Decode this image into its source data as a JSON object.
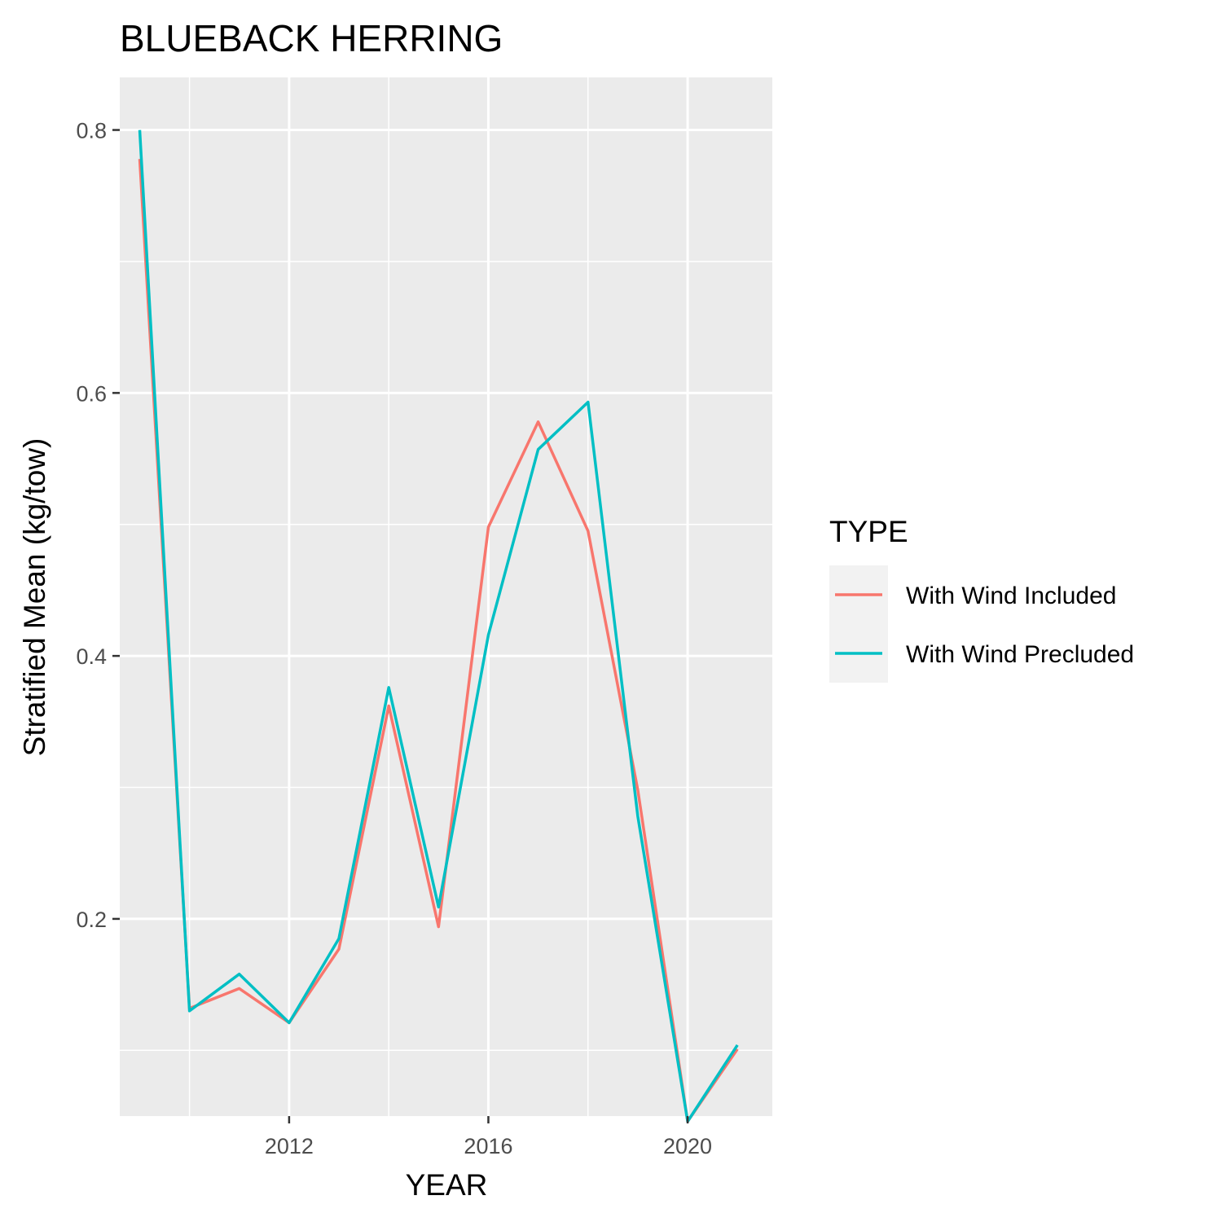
{
  "chart_data": {
    "type": "line",
    "title": "BLUEBACK HERRING",
    "xlabel": "YEAR",
    "ylabel": "Stratified Mean (kg/tow)",
    "xlim": [
      2008.6,
      2021.7
    ],
    "ylim": [
      0.05,
      0.84
    ],
    "x_ticks": [
      2012,
      2016,
      2020
    ],
    "x_minor_ticks": [
      2010,
      2014,
      2018
    ],
    "y_ticks": [
      0.2,
      0.4,
      0.6,
      0.8
    ],
    "y_minor_ticks": [
      0.1,
      0.3,
      0.5,
      0.7
    ],
    "grid": true,
    "legend": {
      "title": "TYPE",
      "position": "right"
    },
    "x": [
      2009,
      2010,
      2011,
      2012,
      2013,
      2014,
      2015,
      2016,
      2017,
      2018,
      2019,
      2020,
      2021
    ],
    "series": [
      {
        "name": "With Wind Included",
        "color": "#F8766D",
        "values": [
          0.778,
          0.132,
          0.147,
          0.121,
          0.177,
          0.362,
          0.194,
          0.498,
          0.578,
          0.495,
          0.298,
          0.046,
          0.101
        ]
      },
      {
        "name": "With Wind Precluded",
        "color": "#00BFC4",
        "values": [
          0.8,
          0.13,
          0.158,
          0.121,
          0.185,
          0.376,
          0.209,
          0.416,
          0.557,
          0.593,
          0.278,
          0.046,
          0.104
        ]
      }
    ]
  }
}
